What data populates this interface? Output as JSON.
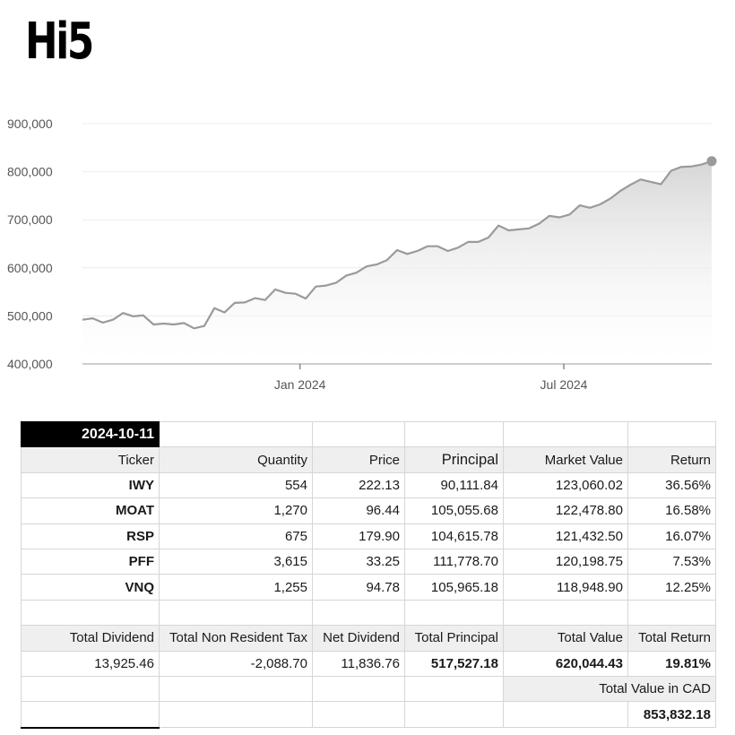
{
  "app": {
    "title": "Hi5"
  },
  "chart_data": {
    "type": "area",
    "title": "",
    "xlabel": "",
    "ylabel": "",
    "ylim": [
      400000,
      900000
    ],
    "yticks": [
      "400,000",
      "500,000",
      "600,000",
      "700,000",
      "800,000",
      "900,000"
    ],
    "ytick_values": [
      400000,
      500000,
      600000,
      700000,
      800000,
      900000
    ],
    "xlim": [
      "2023-08-04",
      "2024-10-11"
    ],
    "xticks": [
      {
        "label": "Jan 2024",
        "date": "2024-01-01"
      },
      {
        "label": "Jul 2024",
        "date": "2024-07-01"
      }
    ],
    "grid": true,
    "series": [
      {
        "line_color": "#9a9a9a",
        "points": [
          [
            "2023-08-04",
            492000
          ],
          [
            "2023-08-11",
            495000
          ],
          [
            "2023-08-18",
            486000
          ],
          [
            "2023-08-25",
            492000
          ],
          [
            "2023-09-01",
            506000
          ],
          [
            "2023-09-08",
            499000
          ],
          [
            "2023-09-15",
            501000
          ],
          [
            "2023-09-22",
            482000
          ],
          [
            "2023-09-29",
            484000
          ],
          [
            "2023-10-06",
            482000
          ],
          [
            "2023-10-13",
            485000
          ],
          [
            "2023-10-20",
            474000
          ],
          [
            "2023-10-27",
            479000
          ],
          [
            "2023-11-03",
            516000
          ],
          [
            "2023-11-10",
            507000
          ],
          [
            "2023-11-17",
            527000
          ],
          [
            "2023-11-24",
            528000
          ],
          [
            "2023-12-01",
            537000
          ],
          [
            "2023-12-08",
            533000
          ],
          [
            "2023-12-15",
            555000
          ],
          [
            "2023-12-22",
            548000
          ],
          [
            "2023-12-29",
            546000
          ],
          [
            "2024-01-05",
            536000
          ],
          [
            "2024-01-12",
            561000
          ],
          [
            "2024-01-19",
            563000
          ],
          [
            "2024-01-26",
            569000
          ],
          [
            "2024-02-02",
            584000
          ],
          [
            "2024-02-09",
            590000
          ],
          [
            "2024-02-16",
            603000
          ],
          [
            "2024-02-23",
            607000
          ],
          [
            "2024-03-01",
            616000
          ],
          [
            "2024-03-08",
            637000
          ],
          [
            "2024-03-15",
            629000
          ],
          [
            "2024-03-22",
            635000
          ],
          [
            "2024-03-29",
            645000
          ],
          [
            "2024-04-05",
            645000
          ],
          [
            "2024-04-12",
            635000
          ],
          [
            "2024-04-19",
            642000
          ],
          [
            "2024-04-26",
            654000
          ],
          [
            "2024-05-03",
            654000
          ],
          [
            "2024-05-10",
            663000
          ],
          [
            "2024-05-17",
            688000
          ],
          [
            "2024-05-24",
            678000
          ],
          [
            "2024-05-31",
            680000
          ],
          [
            "2024-06-07",
            682000
          ],
          [
            "2024-06-14",
            692000
          ],
          [
            "2024-06-21",
            708000
          ],
          [
            "2024-06-28",
            705000
          ],
          [
            "2024-07-05",
            711000
          ],
          [
            "2024-07-12",
            730000
          ],
          [
            "2024-07-19",
            725000
          ],
          [
            "2024-07-26",
            732000
          ],
          [
            "2024-08-02",
            744000
          ],
          [
            "2024-08-09",
            760000
          ],
          [
            "2024-08-16",
            773000
          ],
          [
            "2024-08-23",
            784000
          ],
          [
            "2024-08-30",
            779000
          ],
          [
            "2024-09-06",
            774000
          ],
          [
            "2024-09-13",
            802000
          ],
          [
            "2024-09-20",
            810000
          ],
          [
            "2024-09-27",
            811000
          ],
          [
            "2024-10-04",
            815000
          ],
          [
            "2024-10-11",
            822000
          ]
        ]
      }
    ]
  },
  "sheet": {
    "date": "2024-10-11",
    "headers": [
      "Ticker",
      "Quantity",
      "Price",
      "Principal",
      "Market Value",
      "Return"
    ],
    "holdings": [
      [
        "IWY",
        "554",
        "222.13",
        "90,111.84",
        "123,060.02",
        "36.56%"
      ],
      [
        "MOAT",
        "1,270",
        "96.44",
        "105,055.68",
        "122,478.80",
        "16.58%"
      ],
      [
        "RSP",
        "675",
        "179.90",
        "104,615.78",
        "121,432.50",
        "16.07%"
      ],
      [
        "PFF",
        "3,615",
        "33.25",
        "111,778.70",
        "120,198.75",
        "7.53%"
      ],
      [
        "VNQ",
        "1,255",
        "94.78",
        "105,965.18",
        "118,948.90",
        "12.25%"
      ]
    ],
    "summary_headers": [
      "Total Dividend",
      "Total Non Resident Tax",
      "Net Dividend",
      "Total Principal",
      "Total Value",
      "Total Return"
    ],
    "summary_values": [
      "13,925.46",
      "-2,088.70",
      "11,836.76",
      "517,527.18",
      "620,044.43",
      "19.81%"
    ],
    "cad_label": "Total Value in CAD",
    "cad_value": "853,832.18"
  }
}
